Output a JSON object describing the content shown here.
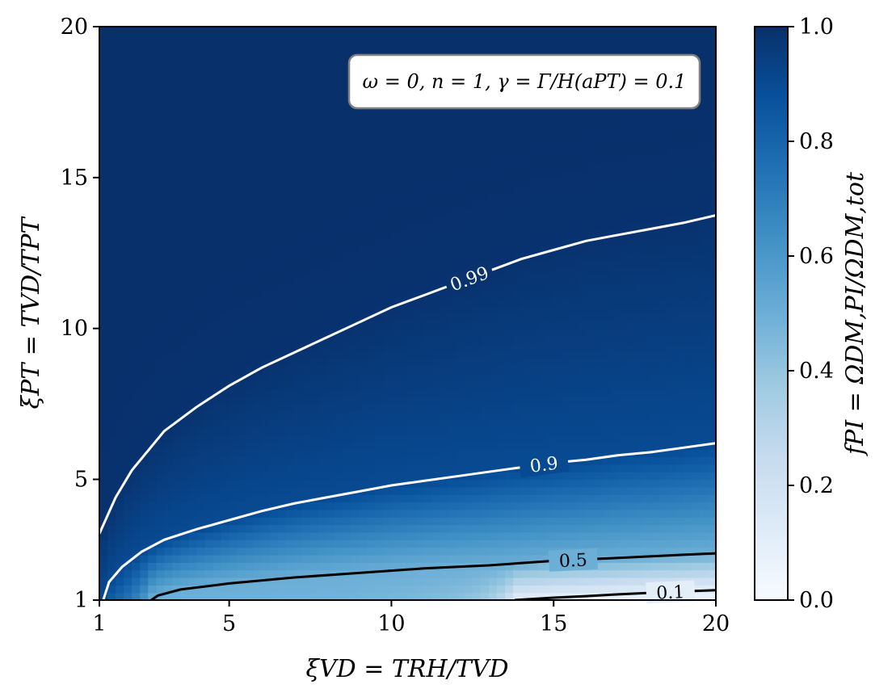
{
  "chart_data": {
    "type": "heatmap",
    "title": "",
    "xlabel": "ξVD = TRH/TVD",
    "ylabel": "ξPT = TVD/TPT",
    "xlim": [
      1,
      20
    ],
    "ylim": [
      1,
      20
    ],
    "xticks": [
      1,
      5,
      10,
      15,
      20
    ],
    "yticks": [
      1,
      5,
      10,
      15,
      20
    ],
    "xtick_labels": [
      "1",
      "5",
      "10",
      "15",
      "20"
    ],
    "ytick_labels": [
      "1",
      "5",
      "10",
      "15",
      "20"
    ],
    "colormap": "Blues",
    "colorbar": {
      "label": "fPI = ΩDM,PI/ΩDM,tot",
      "range": [
        0.0,
        1.0
      ],
      "ticks": [
        0.0,
        0.2,
        0.4,
        0.6,
        0.8,
        1.0
      ],
      "tick_labels": [
        "0.0",
        "0.2",
        "0.4",
        "0.6",
        "0.8",
        "1.0"
      ]
    },
    "annotation": "ω = 0, n = 1, γ = Γ/H(aPT) = 0.1",
    "contours": [
      {
        "level": 0.99,
        "label": "0.99",
        "color": "#ffffff",
        "points": [
          [
            1.0,
            3.2
          ],
          [
            1.5,
            4.4
          ],
          [
            2,
            5.3
          ],
          [
            3,
            6.6
          ],
          [
            4,
            7.4
          ],
          [
            5,
            8.1
          ],
          [
            6,
            8.7
          ],
          [
            7,
            9.2
          ],
          [
            8,
            9.7
          ],
          [
            9,
            10.2
          ],
          [
            10,
            10.7
          ],
          [
            11,
            11.1
          ],
          [
            12,
            11.5
          ],
          [
            13,
            11.9
          ],
          [
            14,
            12.3
          ],
          [
            15,
            12.6
          ],
          [
            16,
            12.9
          ],
          [
            17,
            13.1
          ],
          [
            18,
            13.3
          ],
          [
            19,
            13.5
          ],
          [
            20,
            13.75
          ]
        ]
      },
      {
        "level": 0.9,
        "label": "0.9",
        "color": "#ffffff",
        "points": [
          [
            1.12,
            1.0
          ],
          [
            1.3,
            1.6
          ],
          [
            1.7,
            2.1
          ],
          [
            2.3,
            2.6
          ],
          [
            3,
            3.0
          ],
          [
            4,
            3.35
          ],
          [
            5,
            3.65
          ],
          [
            6,
            3.95
          ],
          [
            7,
            4.2
          ],
          [
            8,
            4.4
          ],
          [
            9,
            4.6
          ],
          [
            10,
            4.8
          ],
          [
            11,
            4.95
          ],
          [
            12,
            5.1
          ],
          [
            13,
            5.25
          ],
          [
            14,
            5.4
          ],
          [
            15,
            5.55
          ],
          [
            16,
            5.65
          ],
          [
            17,
            5.8
          ],
          [
            18,
            5.9
          ],
          [
            19,
            6.05
          ],
          [
            20,
            6.2
          ]
        ]
      },
      {
        "level": 0.5,
        "label": "0.5",
        "color": "#000000",
        "points": [
          [
            2.6,
            1.0
          ],
          [
            2.8,
            1.15
          ],
          [
            3.5,
            1.35
          ],
          [
            5,
            1.55
          ],
          [
            7,
            1.75
          ],
          [
            9,
            1.9
          ],
          [
            11,
            2.05
          ],
          [
            13,
            2.15
          ],
          [
            15,
            2.3
          ],
          [
            17,
            2.4
          ],
          [
            19,
            2.5
          ],
          [
            20,
            2.55
          ]
        ]
      },
      {
        "level": 0.1,
        "label": "0.1",
        "color": "#000000",
        "points": [
          [
            13.8,
            1.0
          ],
          [
            15,
            1.08
          ],
          [
            16,
            1.13
          ],
          [
            17,
            1.19
          ],
          [
            18,
            1.24
          ],
          [
            19,
            1.29
          ],
          [
            20,
            1.33
          ]
        ]
      }
    ]
  }
}
